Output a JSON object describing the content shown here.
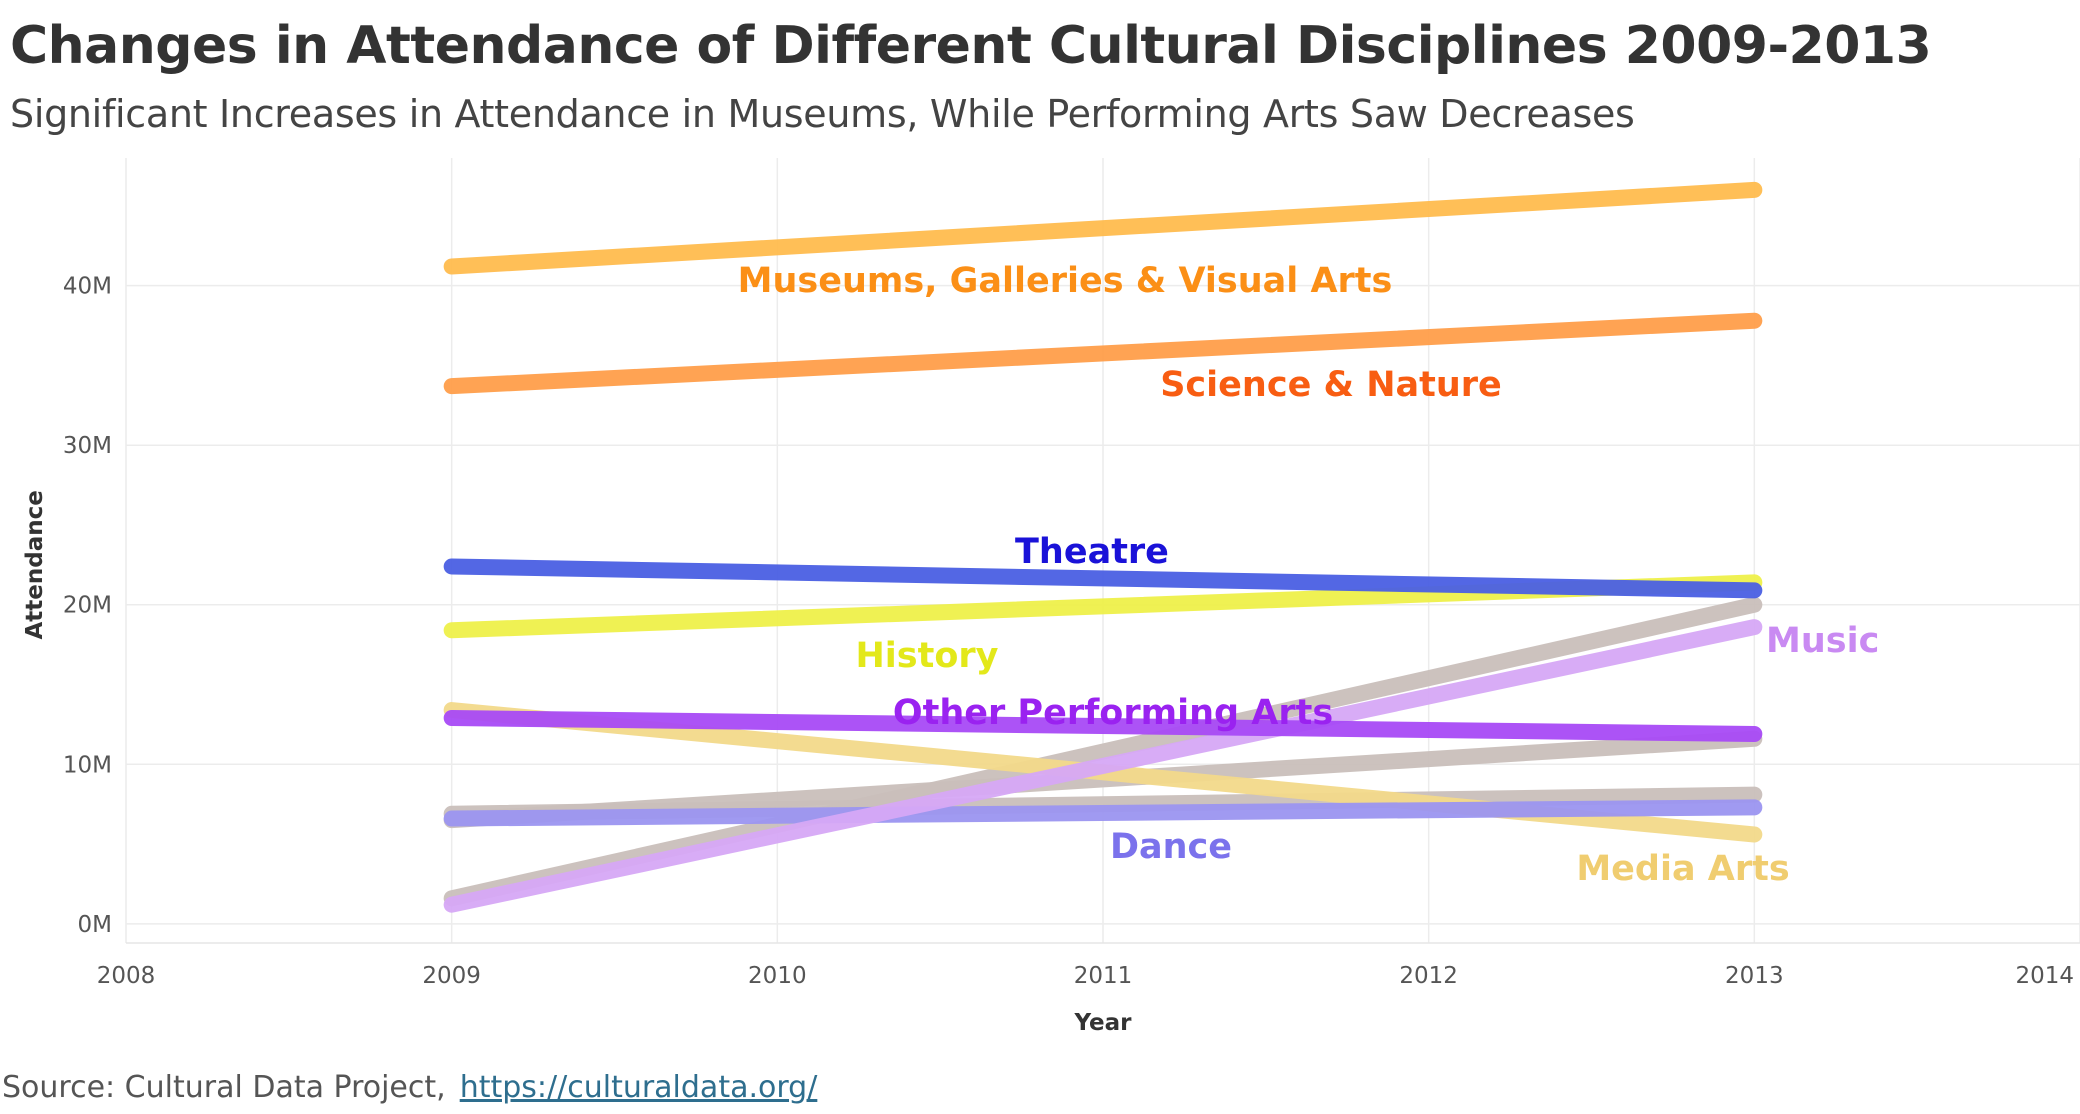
{
  "title": "Changes in Attendance of Different Cultural Disciplines 2009-2013",
  "subtitle": "Significant Increases in Attendance in Museums, While Performing Arts Saw Decreases",
  "source": {
    "label": "Source: Cultural Data Project,",
    "link_text": "https://culturaldata.org/"
  },
  "chart_data": {
    "type": "line",
    "xlabel": "Year",
    "ylabel": "Attendance",
    "xlim": [
      2008,
      2014
    ],
    "ylim": [
      -1.2,
      48
    ],
    "x_ticks": [
      "2008",
      "2009",
      "2010",
      "2011",
      "2012",
      "2013",
      "2014"
    ],
    "y_ticks": [
      {
        "value": 0,
        "label": "0M"
      },
      {
        "value": 10,
        "label": "10M"
      },
      {
        "value": 20,
        "label": "20M"
      },
      {
        "value": 30,
        "label": "30M"
      },
      {
        "value": 40,
        "label": "40M"
      }
    ],
    "grid": true,
    "series": [
      {
        "name": "",
        "x": [
          2009,
          2013
        ],
        "values": [
          6.9,
          8.1
        ],
        "color": "#c9bfba",
        "label_color": ""
      },
      {
        "name": "",
        "x": [
          2009,
          2013
        ],
        "values": [
          6.5,
          11.6
        ],
        "color": "#c9bfba",
        "label_color": ""
      },
      {
        "name": "",
        "x": [
          2009,
          2013
        ],
        "values": [
          1.6,
          20.0
        ],
        "color": "#c9bfba",
        "label_color": ""
      },
      {
        "name": "Media Arts",
        "x": [
          2009,
          2013
        ],
        "values": [
          13.4,
          5.6
        ],
        "color": "#f2d98a",
        "label_color": "#f0cd70"
      },
      {
        "name": "Dance",
        "x": [
          2009,
          2013
        ],
        "values": [
          6.6,
          7.3
        ],
        "color": "#9b95f0",
        "label_color": "#7b72ec"
      },
      {
        "name": "Music",
        "x": [
          2009,
          2013
        ],
        "values": [
          1.2,
          18.6
        ],
        "color": "#d6a8f5",
        "label_color": "#c98af2"
      },
      {
        "name": "Other Performing Arts",
        "x": [
          2009,
          2013
        ],
        "values": [
          12.9,
          11.9
        ],
        "color": "#a84af5",
        "label_color": "#9a22f0"
      },
      {
        "name": "History",
        "x": [
          2009,
          2013
        ],
        "values": [
          18.4,
          21.4
        ],
        "color": "#eef04a",
        "label_color": "#e3e81a"
      },
      {
        "name": "Theatre",
        "x": [
          2009,
          2013
        ],
        "values": [
          22.4,
          20.9
        ],
        "color": "#4a5fe3",
        "label_color": "#1a12d8"
      },
      {
        "name": "Science & Nature",
        "x": [
          2009,
          2013
        ],
        "values": [
          33.7,
          37.8
        ],
        "color": "#ff9e4a",
        "label_color": "#f85d12"
      },
      {
        "name": "Museums, Galleries & Visual Arts",
        "x": [
          2009,
          2013
        ],
        "values": [
          41.2,
          46.0
        ],
        "color": "#ffbc4e",
        "label_color": "#fb8f16"
      }
    ]
  }
}
